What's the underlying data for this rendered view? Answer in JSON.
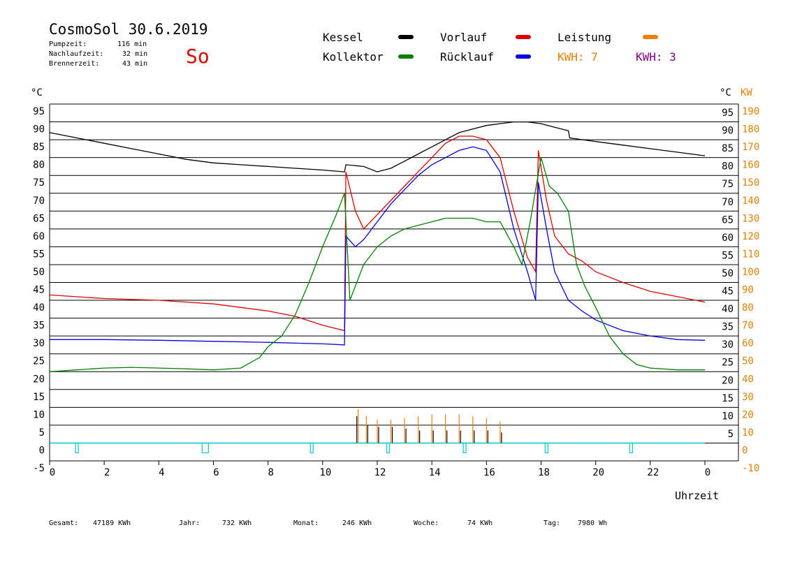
{
  "header": {
    "title": "CosmoSol 30.6.2019",
    "day": "So",
    "stats": [
      {
        "label": "Pumpzeit:",
        "value": "116 min"
      },
      {
        "label": "Nachlaufzeit:",
        "value": "32 min"
      },
      {
        "label": "Brennerzeit:",
        "value": "43 min"
      }
    ]
  },
  "legend": [
    {
      "label": "Kessel",
      "color": "#000000"
    },
    {
      "label": "Vorlauf",
      "color": "#e00000"
    },
    {
      "label": "Leistung",
      "color": "#f08000"
    },
    {
      "label": "Kollektor",
      "color": "#008000"
    },
    {
      "label": "Rücklauf",
      "color": "#0000e0"
    },
    {
      "label": "KWH: 7",
      "color": "#e08000"
    },
    {
      "label": "KWH: 3",
      "color": "#800080"
    }
  ],
  "footer": [
    {
      "label": "Gesamt:",
      "value": "47189 KWh"
    },
    {
      "label": "Jahr:",
      "value": "732 KWh"
    },
    {
      "label": "Monat:",
      "value": "246 KWh"
    },
    {
      "label": "Woche:",
      "value": "74 KWh"
    },
    {
      "label": "Tag:",
      "value": "7980 Wh"
    }
  ],
  "chart_data": {
    "type": "line",
    "xlabel": "Uhrzeit",
    "ylabel_left": "°C",
    "ylabel_right_unit": "°C",
    "ylabel_right_power": "KW",
    "xlim": [
      0,
      24
    ],
    "ylim": [
      -5,
      95
    ],
    "x_ticks": [
      "0",
      "2",
      "4",
      "6",
      "8",
      "10",
      "12",
      "14",
      "16",
      "18",
      "20",
      "22",
      "0"
    ],
    "y_ticks_left": [
      "95",
      "90",
      "85",
      "80",
      "75",
      "70",
      "65",
      "60",
      "55",
      "50",
      "45",
      "40",
      "35",
      "30",
      "25",
      "20",
      "15",
      "10",
      "5",
      "0",
      "-5"
    ],
    "y_ticks_right_temp": [
      "95",
      "90",
      "85",
      "80",
      "75",
      "70",
      "65",
      "60",
      "55",
      "50",
      "45",
      "40",
      "35",
      "30",
      "25",
      "20",
      "15",
      "10",
      "5"
    ],
    "y_ticks_right_kw": [
      "190",
      "180",
      "170",
      "160",
      "150",
      "140",
      "130",
      "120",
      "110",
      "100",
      "90",
      "80",
      "70",
      "60",
      "50",
      "40",
      "30",
      "20",
      "10",
      "0",
      "-10"
    ],
    "grid": true,
    "series": [
      {
        "name": "Kessel",
        "color": "#000000",
        "x": [
          0,
          1,
          2,
          3,
          4,
          5,
          6,
          7,
          8,
          9,
          10,
          10.8,
          10.85,
          11.5,
          12,
          12.5,
          13,
          13.5,
          14,
          14.5,
          15,
          15.5,
          16,
          16.5,
          17,
          17.5,
          18,
          18.5,
          19,
          19.05,
          20,
          21,
          22,
          23,
          24
        ],
        "y": [
          87,
          85.5,
          84,
          82.5,
          81,
          79.5,
          78.5,
          78,
          77.5,
          77,
          76.5,
          76,
          78,
          77.5,
          76,
          77,
          79,
          81,
          83,
          85,
          87,
          88,
          89,
          89.5,
          90,
          90,
          89.5,
          88.5,
          87.5,
          85.5,
          84.5,
          83.5,
          82.5,
          81.5,
          80.5
        ]
      },
      {
        "name": "Vorlauf",
        "color": "#e00000",
        "x": [
          0,
          2,
          4,
          6,
          8,
          9,
          10,
          10.8,
          10.85,
          11.2,
          11.5,
          12,
          12.5,
          13,
          13.5,
          14,
          14.5,
          15,
          15.5,
          16,
          16.5,
          17,
          17.5,
          17.8,
          17.9,
          18.2,
          18.5,
          19,
          19.5,
          20,
          21,
          22,
          23,
          24
        ],
        "y": [
          41.5,
          40.5,
          40,
          39,
          37,
          35.5,
          33,
          31.5,
          76,
          65,
          60,
          64,
          68,
          72,
          76,
          80,
          84,
          86,
          86,
          85,
          80,
          65,
          52,
          48,
          82,
          68,
          58,
          53,
          51,
          48,
          45,
          42.5,
          41,
          39.5
        ]
      },
      {
        "name": "Rücklauf",
        "color": "#0000e0",
        "x": [
          0,
          2,
          4,
          6,
          8,
          9,
          10,
          10.8,
          10.85,
          11.2,
          11.5,
          12,
          12.5,
          13,
          13.5,
          14,
          14.5,
          15,
          15.5,
          16,
          16.5,
          17,
          17.5,
          17.8,
          17.9,
          18.2,
          18.5,
          19,
          19.5,
          20,
          21,
          22,
          23,
          24
        ],
        "y": [
          29,
          29,
          28.8,
          28.5,
          28.2,
          28,
          27.8,
          27.5,
          58,
          55,
          57,
          62,
          67,
          71,
          75,
          78,
          80,
          82,
          83,
          82,
          76,
          60,
          48,
          40,
          73,
          60,
          48,
          40,
          37,
          34.5,
          31.5,
          30,
          29,
          28.8
        ]
      },
      {
        "name": "Kollektor",
        "color": "#008000",
        "x": [
          0,
          1,
          2,
          3,
          4,
          5,
          6,
          7,
          7.7,
          8,
          8.5,
          9,
          9.5,
          10,
          10.5,
          10.8,
          11,
          11.5,
          12,
          12.5,
          13,
          13.5,
          14,
          14.5,
          15,
          15.5,
          16,
          16.5,
          17,
          17.3,
          17.6,
          18,
          18.3,
          18.6,
          19,
          19.3,
          19.6,
          20,
          20.5,
          21,
          21.5,
          22,
          23,
          24
        ],
        "y": [
          20,
          20.5,
          21,
          21.2,
          21,
          20.8,
          20.5,
          21,
          24,
          27,
          30,
          36,
          45,
          55,
          64,
          70,
          40,
          50,
          55,
          58,
          60,
          61,
          62,
          63,
          63,
          63,
          62,
          62,
          55,
          50,
          62,
          80,
          72,
          70,
          65,
          50,
          44,
          38,
          30,
          25,
          22,
          21,
          20.5,
          20.5
        ]
      }
    ],
    "power": {
      "name": "Leistung",
      "color": "#f08000",
      "x": [
        11.3,
        11.6,
        12,
        12.5,
        13,
        13.5,
        14,
        14.5,
        15,
        15.5,
        16,
        16.5
      ],
      "y": [
        9.5,
        7.5,
        6.5,
        6.5,
        7,
        7.5,
        8,
        8,
        8,
        7.5,
        7,
        6
      ]
    },
    "burner": {
      "name": "Kessel",
      "color": "#000000",
      "x": [
        11.2,
        11.6,
        12,
        12.5,
        13,
        13.5,
        14,
        14.5,
        15,
        15.5,
        16,
        16.5
      ],
      "y": [
        7.5,
        5,
        4.5,
        4.5,
        4,
        3.5,
        3.5,
        3.5,
        3.5,
        3.5,
        3.5,
        3
      ]
    },
    "pump_markers": {
      "name": "Pumpe",
      "color": "#00c8d0",
      "x": [
        1,
        5.7,
        9.6,
        12.4,
        15.2,
        18.2,
        21.3
      ]
    }
  }
}
